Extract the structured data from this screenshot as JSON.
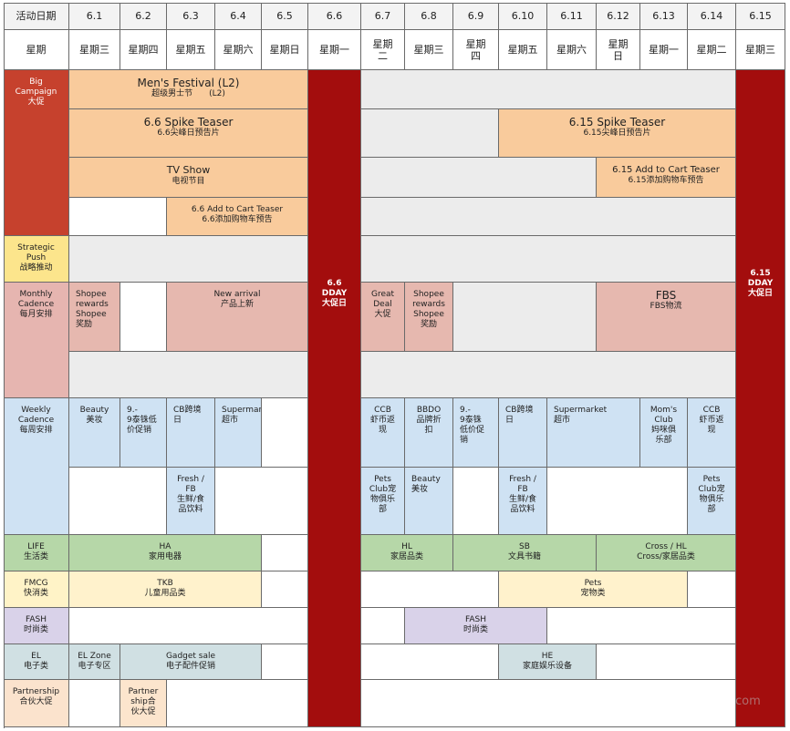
{
  "header": {
    "row1_label": "活动日期",
    "row2_label": "星期",
    "dates": [
      "6.1",
      "6.2",
      "6.3",
      "6.4",
      "6.5",
      "6.6",
      "6.7",
      "6.8",
      "6.9",
      "6.10",
      "6.11",
      "6.12",
      "6.13",
      "6.14",
      "6.15"
    ],
    "weekdays": [
      "星期三",
      "星期四",
      "星期五",
      "星期六",
      "星期日",
      "星期一",
      "星期\n二",
      "星期三",
      "星期\n四",
      "星期五",
      "星期六",
      "星期\n日",
      "星期一",
      "星期二",
      "星期三"
    ]
  },
  "rows": {
    "big": "Big\nCampaign\n大促",
    "strategic": "Strategic\nPush\n战略推动",
    "monthly": "Monthly\nCadence\n每月安排",
    "weekly": "Weekly\nCadence\n每周安排",
    "life": "LIFE\n生活类",
    "fmcg": "FMCG\n快消类",
    "fash": "FASH\n时尚类",
    "el": "EL\n电子类",
    "partnership": "Partnership\n合伙大促"
  },
  "dday": {
    "d66": "6.6\nDDAY\n大促日",
    "d615": "6.15\nDDAY\n大促日"
  },
  "events": {
    "mens_festival": {
      "en": "Men's Festival (L2)",
      "zh": "超级男士节　　(L2)"
    },
    "spike_66": {
      "en": "6.6 Spike Teaser",
      "zh": "6.6尖峰日预告片"
    },
    "spike_615": {
      "en": "6.15 Spike Teaser",
      "zh": "6.15尖峰日预告片"
    },
    "tv_show": {
      "en": "TV Show",
      "zh": "电视节目"
    },
    "atc_615": {
      "en": "6.15 Add to Cart Teaser",
      "zh": "6.15添加购物车预告"
    },
    "atc_66": {
      "en": "6.6 Add to Cart Teaser",
      "zh": "6.6添加购物车预告"
    },
    "m_rewards1": "Shopee\nrewards\nShopee\n奖励",
    "m_new_arrival": "New arrival\n产品上新",
    "m_great_deal": "Great\nDeal\n大促",
    "m_rewards2": "Shopee\nrewards\nShopee\n奖励",
    "m_fbs": {
      "en": "FBS",
      "zh": "FBS物流"
    },
    "w_beauty1": "Beauty\n美妆",
    "w_99_1": "9.-\n9泰铢低\n价促销",
    "w_cb1": "CB跨境\n日",
    "w_super1": "Supermarket\n超市",
    "w_ccb1": "CCB\n虾币返\n现",
    "w_bbdo": "BBDO\n品牌折\n扣",
    "w_99_2": "9.-\n9泰铢\n低价促\n销",
    "w_cb2": "CB跨境\n日",
    "w_super2": "Supermarket\n超市",
    "w_moms": "Mom's\nClub\n妈咪俱\n乐部",
    "w_ccb2": "CCB\n虾币返\n现",
    "w_fresh1": "Fresh /\nFB\n生鲜/食\n品饮料",
    "w_pets1": "Pets\nClub宠\n物俱乐\n部",
    "w_beauty2": "Beauty\n美妆",
    "w_fresh2": "Fresh /\nFB\n生鲜/食\n品饮料",
    "w_pets2": "Pets\nClub宠\n物俱乐\n部",
    "life_ha": "HA\n家用电器",
    "life_hl": "HL\n家居品类",
    "life_sb": "SB\n文具书籍",
    "life_cross": "Cross / HL\nCross/家居品类",
    "fmcg_tkb": "TKB\n儿童用品类",
    "fmcg_pets": "Pets\n宠物类",
    "fash_fash": "FASH\n时尚类",
    "el_zone": "EL Zone\n电子专区",
    "el_gadget": "Gadget sale\n电子配件促销",
    "el_he": "HE\n家庭娱乐设备",
    "part_ship": "Partner\nship合\n伙大促"
  },
  "watermark": "com"
}
